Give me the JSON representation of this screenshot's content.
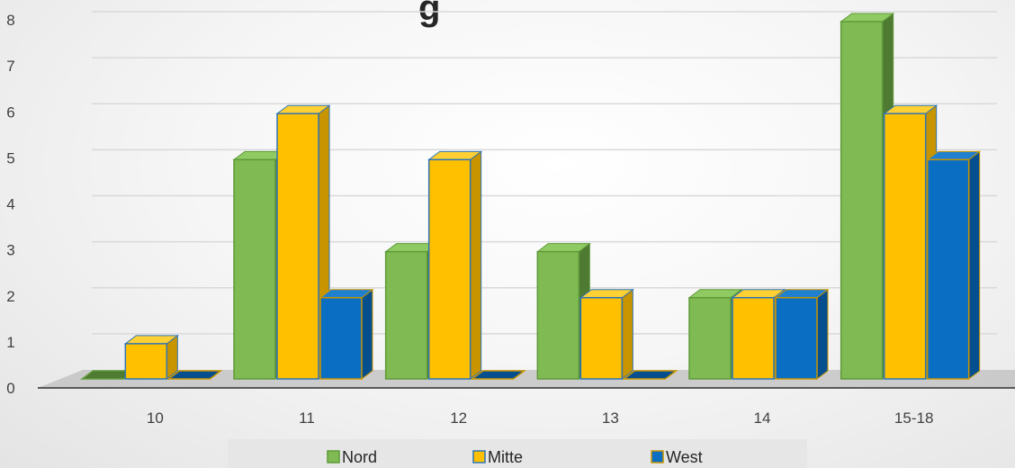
{
  "chart_data": {
    "type": "bar",
    "title_visible_fragment": "g",
    "categories": [
      "10",
      "11",
      "12",
      "13",
      "14",
      "15-18"
    ],
    "series": [
      {
        "name": "Nord",
        "values": [
          0,
          5,
          3,
          3,
          2,
          8
        ]
      },
      {
        "name": "Mitte",
        "values": [
          1,
          6,
          5,
          2,
          2,
          6
        ]
      },
      {
        "name": "West",
        "values": [
          0,
          2,
          0,
          0,
          2,
          5
        ]
      }
    ],
    "ylim": [
      0,
      8
    ],
    "yticks": [
      "0",
      "1",
      "2",
      "3",
      "4",
      "5",
      "6",
      "7",
      "8"
    ],
    "grid": true,
    "legend_position": "bottom",
    "style": "3d-clustered-column",
    "colors": {
      "Nord": {
        "front": "#7fba52",
        "side": "#4f7a32",
        "top": "#8fca62",
        "stroke": "#5f9a3a"
      },
      "Mitte": {
        "front": "#ffc000",
        "side": "#c89400",
        "top": "#ffd033",
        "stroke": "#2e75b6"
      },
      "West": {
        "front": "#0a6fc2",
        "side": "#064f8f",
        "top": "#1f80d0",
        "stroke": "#c89400"
      }
    }
  }
}
